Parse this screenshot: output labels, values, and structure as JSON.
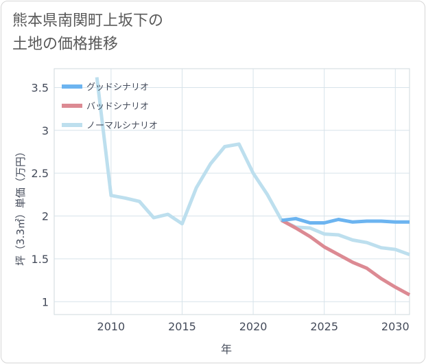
{
  "title_line1": "熊本県南関町上坂下の",
  "title_line2": "土地の価格推移",
  "chart_data": {
    "type": "line",
    "xlabel": "年",
    "ylabel": "坪（3.3㎡）単価（万円）",
    "xlim": [
      2006,
      2031
    ],
    "ylim": [
      0.85,
      3.72
    ],
    "xticks": [
      "2010",
      "2015",
      "2020",
      "2025",
      "2030"
    ],
    "yticks": [
      "1",
      "1.5",
      "2",
      "2.5",
      "3",
      "3.5"
    ],
    "legend_position": "top-left",
    "series": [
      {
        "name": "グッドシナリオ",
        "color": "#6cb4f0",
        "x": [
          2022,
          2023,
          2024,
          2025,
          2026,
          2027,
          2028,
          2029,
          2030,
          2031
        ],
        "values": [
          1.95,
          1.97,
          1.92,
          1.92,
          1.96,
          1.93,
          1.94,
          1.94,
          1.93,
          1.93
        ]
      },
      {
        "name": "バッドシナリオ",
        "color": "#dc8a93",
        "x": [
          2022,
          2023,
          2024,
          2025,
          2026,
          2027,
          2028,
          2029,
          2030,
          2031
        ],
        "values": [
          1.95,
          1.86,
          1.76,
          1.64,
          1.55,
          1.46,
          1.39,
          1.27,
          1.17,
          1.08
        ]
      },
      {
        "name": "ノーマルシナリオ",
        "color": "#bddfee",
        "x": [
          2009,
          2010,
          2011,
          2012,
          2013,
          2014,
          2015,
          2016,
          2017,
          2018,
          2019,
          2020,
          2021,
          2022,
          2023,
          2024,
          2025,
          2026,
          2027,
          2028,
          2029,
          2030,
          2031
        ],
        "values": [
          3.62,
          2.24,
          2.21,
          2.17,
          1.98,
          2.02,
          1.91,
          2.33,
          2.61,
          2.81,
          2.84,
          2.5,
          2.25,
          1.95,
          1.87,
          1.86,
          1.79,
          1.78,
          1.72,
          1.69,
          1.63,
          1.61,
          1.55
        ]
      }
    ]
  }
}
